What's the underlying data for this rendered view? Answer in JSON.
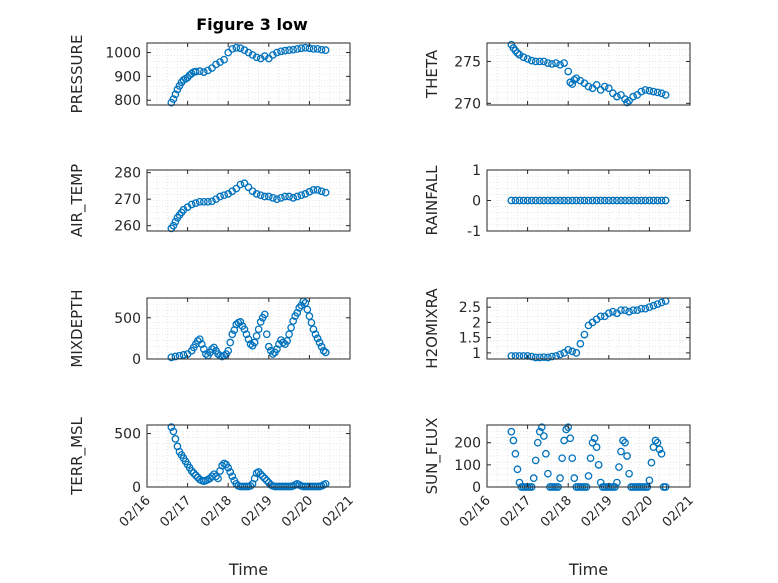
{
  "figure_title": "Figure 3 low",
  "colors": {
    "marker": "#0072BD",
    "axis": "#262626",
    "grid": "#d7d7d7",
    "background": "#ffffff"
  },
  "chart_data": [
    {
      "id": "pressure",
      "type": "scatter",
      "ylabel": "PRESSURE",
      "xlim": [
        0,
        5
      ],
      "ylim": [
        780,
        1040
      ],
      "yticks": [
        800,
        900,
        1000
      ],
      "xtick_labels": [
        "02/16",
        "02/17",
        "02/18",
        "02/19",
        "02/20",
        "02/21"
      ],
      "show_xticklabels": false,
      "xlabel": "",
      "grid": true,
      "x": [
        0.6,
        0.65,
        0.7,
        0.75,
        0.8,
        0.85,
        0.9,
        0.95,
        1.0,
        1.05,
        1.1,
        1.15,
        1.2,
        1.3,
        1.4,
        1.5,
        1.6,
        1.7,
        1.8,
        1.9,
        2.0,
        2.1,
        2.2,
        2.3,
        2.4,
        2.5,
        2.6,
        2.7,
        2.8,
        2.9,
        3.0,
        3.1,
        3.2,
        3.3,
        3.4,
        3.5,
        3.6,
        3.7,
        3.8,
        3.9,
        4.0,
        4.1,
        4.2,
        4.3,
        4.4
      ],
      "y": [
        790,
        805,
        825,
        845,
        860,
        875,
        885,
        890,
        895,
        905,
        912,
        918,
        920,
        922,
        918,
        925,
        935,
        950,
        960,
        970,
        1000,
        1015,
        1020,
        1018,
        1010,
        1000,
        990,
        980,
        975,
        985,
        975,
        990,
        1000,
        1005,
        1008,
        1010,
        1012,
        1015,
        1018,
        1020,
        1018,
        1015,
        1015,
        1012,
        1010
      ]
    },
    {
      "id": "theta",
      "type": "scatter",
      "ylabel": "THETA",
      "xlim": [
        0,
        5
      ],
      "ylim": [
        269.8,
        277.2
      ],
      "yticks": [
        270,
        275
      ],
      "xtick_labels": [
        "02/16",
        "02/17",
        "02/18",
        "02/19",
        "02/20",
        "02/21"
      ],
      "show_xticklabels": false,
      "xlabel": "",
      "grid": true,
      "x": [
        0.6,
        0.65,
        0.7,
        0.75,
        0.8,
        0.9,
        1.0,
        1.1,
        1.2,
        1.3,
        1.4,
        1.5,
        1.6,
        1.7,
        1.8,
        1.9,
        2.0,
        2.05,
        2.1,
        2.15,
        2.2,
        2.3,
        2.4,
        2.5,
        2.6,
        2.7,
        2.8,
        2.9,
        3.0,
        3.1,
        3.2,
        3.3,
        3.4,
        3.45,
        3.5,
        3.6,
        3.7,
        3.8,
        3.9,
        4.0,
        4.1,
        4.2,
        4.3,
        4.4
      ],
      "y": [
        277,
        276.6,
        276.3,
        276,
        275.8,
        275.5,
        275.3,
        275.1,
        275,
        275,
        275,
        274.8,
        274.7,
        274.8,
        274.6,
        274.8,
        273.8,
        272.5,
        272.3,
        272.8,
        273,
        272.7,
        272.4,
        272,
        271.8,
        272.2,
        271.6,
        272,
        271.8,
        271.2,
        270.8,
        271,
        270.5,
        270.1,
        270.3,
        270.8,
        271,
        271.4,
        271.6,
        271.5,
        271.4,
        271.3,
        271.2,
        271
      ]
    },
    {
      "id": "air_temp",
      "type": "scatter",
      "ylabel": "AIR_TEMP",
      "xlim": [
        0,
        5
      ],
      "ylim": [
        258,
        281
      ],
      "yticks": [
        260,
        270,
        280
      ],
      "xtick_labels": [
        "02/16",
        "02/17",
        "02/18",
        "02/19",
        "02/20",
        "02/21"
      ],
      "show_xticklabels": false,
      "xlabel": "",
      "grid": true,
      "x": [
        0.6,
        0.65,
        0.7,
        0.75,
        0.8,
        0.85,
        0.9,
        1.0,
        1.1,
        1.2,
        1.3,
        1.4,
        1.5,
        1.6,
        1.7,
        1.8,
        1.9,
        2.0,
        2.1,
        2.2,
        2.3,
        2.4,
        2.5,
        2.6,
        2.7,
        2.8,
        2.9,
        3.0,
        3.1,
        3.2,
        3.3,
        3.4,
        3.5,
        3.6,
        3.7,
        3.8,
        3.9,
        4.0,
        4.1,
        4.2,
        4.3,
        4.4
      ],
      "y": [
        259,
        260,
        261.5,
        263,
        264,
        265,
        266,
        267,
        268,
        268.5,
        269,
        269,
        269,
        269.2,
        270,
        271,
        271.5,
        272,
        273,
        274,
        275.5,
        276,
        274.5,
        273,
        272,
        271.5,
        271,
        271,
        270.5,
        270,
        270.5,
        271,
        271,
        270.5,
        271,
        271.5,
        272,
        272.8,
        273.5,
        273.5,
        273,
        272.5
      ]
    },
    {
      "id": "rainfall",
      "type": "scatter",
      "ylabel": "RAINFALL",
      "xlim": [
        0,
        5
      ],
      "ylim": [
        -1,
        1
      ],
      "yticks": [
        -1,
        0,
        1
      ],
      "xtick_labels": [
        "02/16",
        "02/17",
        "02/18",
        "02/19",
        "02/20",
        "02/21"
      ],
      "show_xticklabels": false,
      "xlabel": "",
      "grid": true,
      "x": [
        0.6,
        0.7,
        0.8,
        0.9,
        1.0,
        1.1,
        1.2,
        1.3,
        1.4,
        1.5,
        1.6,
        1.7,
        1.8,
        1.9,
        2.0,
        2.1,
        2.2,
        2.3,
        2.4,
        2.5,
        2.6,
        2.7,
        2.8,
        2.9,
        3.0,
        3.1,
        3.2,
        3.3,
        3.4,
        3.5,
        3.6,
        3.7,
        3.8,
        3.9,
        4.0,
        4.1,
        4.2,
        4.3,
        4.4
      ],
      "y": [
        0,
        0,
        0,
        0,
        0,
        0,
        0,
        0,
        0,
        0,
        0,
        0,
        0,
        0,
        0,
        0,
        0,
        0,
        0,
        0,
        0,
        0,
        0,
        0,
        0,
        0,
        0,
        0,
        0,
        0,
        0,
        0,
        0,
        0,
        0,
        0,
        0,
        0,
        0
      ]
    },
    {
      "id": "mixdepth",
      "type": "scatter",
      "ylabel": "MIXDEPTH",
      "xlim": [
        0,
        5
      ],
      "ylim": [
        0,
        740
      ],
      "yticks": [
        0,
        500
      ],
      "xtick_labels": [
        "02/16",
        "02/17",
        "02/18",
        "02/19",
        "02/20",
        "02/21"
      ],
      "show_xticklabels": false,
      "xlabel": "",
      "grid": true,
      "x": [
        0.6,
        0.7,
        0.8,
        0.9,
        1.0,
        1.1,
        1.15,
        1.2,
        1.25,
        1.3,
        1.35,
        1.4,
        1.45,
        1.5,
        1.55,
        1.6,
        1.65,
        1.7,
        1.75,
        1.8,
        1.85,
        1.9,
        1.95,
        2.0,
        2.05,
        2.1,
        2.15,
        2.2,
        2.25,
        2.3,
        2.35,
        2.4,
        2.45,
        2.5,
        2.55,
        2.6,
        2.65,
        2.7,
        2.75,
        2.8,
        2.85,
        2.9,
        2.95,
        3.0,
        3.05,
        3.1,
        3.15,
        3.2,
        3.25,
        3.3,
        3.35,
        3.4,
        3.45,
        3.5,
        3.55,
        3.6,
        3.65,
        3.7,
        3.75,
        3.8,
        3.85,
        3.9,
        3.95,
        4.0,
        4.05,
        4.1,
        4.15,
        4.2,
        4.25,
        4.3,
        4.35,
        4.4
      ],
      "y": [
        20,
        30,
        40,
        50,
        60,
        100,
        140,
        180,
        220,
        240,
        180,
        120,
        60,
        40,
        80,
        120,
        140,
        100,
        60,
        40,
        30,
        40,
        60,
        100,
        200,
        300,
        350,
        420,
        440,
        450,
        400,
        360,
        300,
        240,
        180,
        160,
        200,
        280,
        360,
        450,
        500,
        540,
        300,
        150,
        100,
        60,
        80,
        120,
        180,
        230,
        200,
        180,
        220,
        300,
        380,
        460,
        520,
        560,
        620,
        650,
        700,
        680,
        600,
        520,
        440,
        360,
        300,
        250,
        200,
        150,
        100,
        80
      ]
    },
    {
      "id": "h2omixra",
      "type": "scatter",
      "ylabel": "H2OMIXRA",
      "xlim": [
        0,
        5
      ],
      "ylim": [
        0.8,
        2.8
      ],
      "yticks": [
        1,
        1.5,
        2,
        2.5
      ],
      "xtick_labels": [
        "02/16",
        "02/17",
        "02/18",
        "02/19",
        "02/20",
        "02/21"
      ],
      "show_xticklabels": false,
      "xlabel": "",
      "grid": true,
      "x": [
        0.6,
        0.7,
        0.8,
        0.9,
        1.0,
        1.1,
        1.2,
        1.3,
        1.4,
        1.5,
        1.6,
        1.7,
        1.8,
        1.9,
        2.0,
        2.1,
        2.2,
        2.3,
        2.4,
        2.5,
        2.6,
        2.7,
        2.8,
        2.9,
        3.0,
        3.1,
        3.2,
        3.3,
        3.4,
        3.5,
        3.6,
        3.7,
        3.8,
        3.9,
        4.0,
        4.1,
        4.2,
        4.3,
        4.4
      ],
      "y": [
        0.9,
        0.9,
        0.9,
        0.9,
        0.9,
        0.88,
        0.85,
        0.85,
        0.86,
        0.85,
        0.88,
        0.9,
        0.95,
        1.0,
        1.1,
        1.05,
        1.0,
        1.3,
        1.6,
        1.9,
        2.0,
        2.1,
        2.2,
        2.2,
        2.3,
        2.35,
        2.3,
        2.4,
        2.4,
        2.35,
        2.4,
        2.4,
        2.45,
        2.45,
        2.5,
        2.55,
        2.6,
        2.65,
        2.7
      ]
    },
    {
      "id": "terr_msl",
      "type": "scatter",
      "ylabel": "TERR_MSL",
      "xlim": [
        0,
        5
      ],
      "ylim": [
        0,
        580
      ],
      "yticks": [
        0,
        500
      ],
      "xtick_labels": [
        "02/16",
        "02/17",
        "02/18",
        "02/19",
        "02/20",
        "02/21"
      ],
      "show_xticklabels": true,
      "xlabel": "Time",
      "grid": true,
      "x": [
        0.6,
        0.65,
        0.7,
        0.75,
        0.8,
        0.85,
        0.9,
        0.95,
        1.0,
        1.05,
        1.1,
        1.15,
        1.2,
        1.25,
        1.3,
        1.35,
        1.4,
        1.45,
        1.5,
        1.55,
        1.6,
        1.65,
        1.7,
        1.75,
        1.8,
        1.85,
        1.9,
        1.95,
        2.0,
        2.05,
        2.1,
        2.15,
        2.2,
        2.25,
        2.3,
        2.35,
        2.4,
        2.45,
        2.5,
        2.55,
        2.6,
        2.65,
        2.7,
        2.75,
        2.8,
        2.85,
        2.9,
        2.95,
        3.0,
        3.05,
        3.1,
        3.15,
        3.2,
        3.25,
        3.3,
        3.35,
        3.4,
        3.45,
        3.5,
        3.55,
        3.6,
        3.65,
        3.7,
        3.75,
        3.8,
        3.85,
        3.9,
        3.95,
        4.0,
        4.05,
        4.1,
        4.15,
        4.2,
        4.25,
        4.3,
        4.35,
        4.4
      ],
      "y": [
        560,
        520,
        450,
        380,
        330,
        300,
        270,
        240,
        210,
        180,
        150,
        130,
        110,
        90,
        70,
        60,
        55,
        60,
        70,
        80,
        100,
        120,
        100,
        80,
        150,
        200,
        220,
        210,
        180,
        140,
        100,
        60,
        30,
        10,
        5,
        5,
        5,
        5,
        5,
        10,
        30,
        80,
        130,
        140,
        120,
        100,
        80,
        60,
        40,
        20,
        10,
        5,
        5,
        5,
        5,
        5,
        5,
        5,
        5,
        5,
        10,
        20,
        30,
        20,
        10,
        5,
        5,
        5,
        5,
        5,
        5,
        5,
        5,
        5,
        10,
        20,
        30
      ]
    },
    {
      "id": "sun_flux",
      "type": "scatter",
      "ylabel": "SUN_FLUX",
      "xlim": [
        0,
        5
      ],
      "ylim": [
        0,
        280
      ],
      "yticks": [
        0,
        100,
        200
      ],
      "xtick_labels": [
        "02/16",
        "02/17",
        "02/18",
        "02/19",
        "02/20",
        "02/21"
      ],
      "show_xticklabels": true,
      "xlabel": "Time",
      "grid": true,
      "x": [
        0.6,
        0.65,
        0.7,
        0.75,
        0.8,
        0.85,
        0.9,
        0.95,
        1.0,
        1.05,
        1.1,
        1.15,
        1.2,
        1.25,
        1.3,
        1.35,
        1.4,
        1.45,
        1.5,
        1.55,
        1.6,
        1.65,
        1.7,
        1.75,
        1.8,
        1.85,
        1.9,
        1.95,
        2.0,
        2.05,
        2.1,
        2.15,
        2.2,
        2.25,
        2.3,
        2.35,
        2.4,
        2.45,
        2.5,
        2.55,
        2.6,
        2.65,
        2.7,
        2.75,
        2.8,
        2.85,
        2.9,
        2.95,
        3.0,
        3.05,
        3.1,
        3.15,
        3.2,
        3.25,
        3.3,
        3.35,
        3.4,
        3.45,
        3.5,
        3.55,
        3.6,
        3.65,
        3.7,
        3.75,
        3.8,
        3.85,
        3.9,
        3.95,
        4.0,
        4.05,
        4.1,
        4.15,
        4.2,
        4.25,
        4.3,
        4.35,
        4.4
      ],
      "y": [
        250,
        210,
        150,
        80,
        20,
        0,
        0,
        0,
        0,
        0,
        0,
        40,
        120,
        200,
        250,
        270,
        230,
        150,
        60,
        0,
        0,
        0,
        0,
        0,
        40,
        130,
        210,
        260,
        270,
        220,
        130,
        40,
        0,
        0,
        0,
        0,
        0,
        0,
        50,
        130,
        200,
        220,
        180,
        100,
        20,
        0,
        0,
        0,
        0,
        0,
        0,
        0,
        20,
        90,
        160,
        210,
        200,
        140,
        60,
        0,
        0,
        0,
        0,
        0,
        0,
        0,
        0,
        0,
        30,
        110,
        180,
        210,
        200,
        170,
        150,
        0,
        0
      ]
    }
  ]
}
